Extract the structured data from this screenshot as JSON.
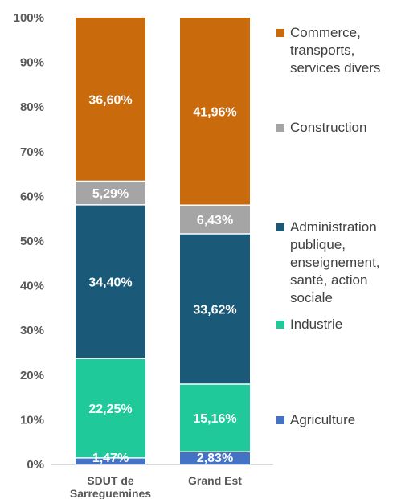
{
  "chart_data": {
    "type": "bar",
    "stacked": true,
    "categories": [
      "SDUT de Sarreguemines",
      "Grand Est"
    ],
    "category_labels": [
      "SDUT de\nSarreguemines",
      "Grand Est"
    ],
    "ylim": [
      0,
      100
    ],
    "yticks": [
      "0%",
      "10%",
      "20%",
      "30%",
      "40%",
      "50%",
      "60%",
      "70%",
      "80%",
      "90%",
      "100%"
    ],
    "series": [
      {
        "name": "Agriculture",
        "color": "#4472C4",
        "values": [
          1.47,
          2.83
        ],
        "labels": [
          "1,47%",
          "2,83%"
        ]
      },
      {
        "name": "Industrie",
        "color": "#1FC99A",
        "values": [
          22.25,
          15.16
        ],
        "labels": [
          "22,25%",
          "15,16%"
        ]
      },
      {
        "name": "Administration publique, enseignement, santé, action sociale",
        "color": "#1A5A78",
        "values": [
          34.4,
          33.62
        ],
        "labels": [
          "34,40%",
          "33,62%"
        ]
      },
      {
        "name": "Construction",
        "color": "#A5A5A5",
        "values": [
          5.29,
          6.43
        ],
        "labels": [
          "5,29%",
          "6,43%"
        ]
      },
      {
        "name": "Commerce, transports, services divers",
        "color": "#C96A0C",
        "values": [
          36.6,
          41.96
        ],
        "labels": [
          "36,60%",
          "41,96%"
        ]
      }
    ],
    "legend": {
      "placement": "right",
      "entries": [
        {
          "label": "Commerce,\ntransports,\nservices divers",
          "color": "#C96A0C"
        },
        {
          "label": "Construction",
          "color": "#A5A5A5"
        },
        {
          "label": "Administration\npublique,\nenseignement,\nsanté, action\nsociale",
          "color": "#1A5A78"
        },
        {
          "label": "Industrie",
          "color": "#1FC99A"
        },
        {
          "label": "Agriculture",
          "color": "#4472C4"
        }
      ]
    },
    "grid": false
  }
}
